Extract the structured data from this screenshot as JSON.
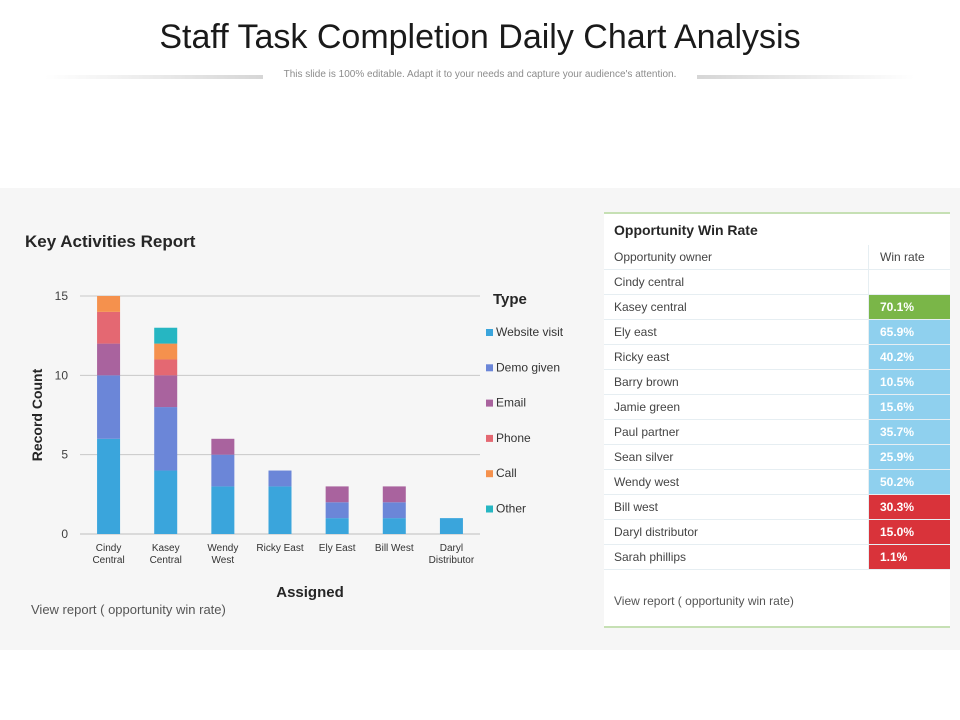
{
  "slide": {
    "title": "Staff Task Completion Daily Chart Analysis",
    "subtitle": "This slide is 100% editable. Adapt it to your needs and capture your audience's attention."
  },
  "report": {
    "title": "Key Activities Report",
    "view_link": "View report ( opportunity win rate)"
  },
  "chart_data": {
    "type": "bar",
    "stacked": true,
    "categories": [
      "Cindy Central",
      "Kasey Central",
      "Wendy West",
      "Ricky East",
      "Ely East",
      "Bill West",
      "Daryl Distributor"
    ],
    "category_labels": [
      [
        "Cindy",
        "Central"
      ],
      [
        "Kasey",
        "Central"
      ],
      [
        "Wendy",
        "West"
      ],
      [
        "Ricky East"
      ],
      [
        "Ely East"
      ],
      [
        "Bill West"
      ],
      [
        "Daryl",
        "Distributor"
      ]
    ],
    "series": [
      {
        "name": "Website visit",
        "color": "#3aa5dc",
        "values": [
          6,
          4,
          3,
          3,
          1,
          1,
          1
        ]
      },
      {
        "name": "Demo given",
        "color": "#6b86d8",
        "values": [
          4,
          4,
          2,
          1,
          1,
          1,
          0
        ]
      },
      {
        "name": "Email",
        "color": "#a9639e",
        "values": [
          2,
          2,
          1,
          0,
          1,
          1,
          0
        ]
      },
      {
        "name": "Phone",
        "color": "#e46872",
        "values": [
          2,
          1,
          0,
          0,
          0,
          0,
          0
        ]
      },
      {
        "name": "Call",
        "color": "#f5914d",
        "values": [
          1,
          1,
          0,
          0,
          0,
          0,
          0
        ]
      },
      {
        "name": "Other",
        "color": "#26b6c2",
        "values": [
          0,
          1,
          0,
          0,
          0,
          0,
          0
        ]
      }
    ],
    "xlabel": "Assigned",
    "ylabel": "Record Count",
    "ylim": [
      0,
      15
    ],
    "yticks": [
      0,
      5,
      10,
      15
    ],
    "legend_title": "Type",
    "legend_position": "right",
    "grid": true
  },
  "win_rate": {
    "title": "Opportunity Win Rate",
    "header": {
      "owner": "Opportunity owner",
      "rate": "Win rate"
    },
    "rows": [
      {
        "owner": "Cindy central",
        "rate": "",
        "color": "#ffffff"
      },
      {
        "owner": "Kasey central",
        "rate": "70.1%",
        "color": "#7ab648"
      },
      {
        "owner": "Ely east",
        "rate": "65.9%",
        "color": "#8fd0ee"
      },
      {
        "owner": "Ricky east",
        "rate": "40.2%",
        "color": "#8fd0ee"
      },
      {
        "owner": "Barry brown",
        "rate": "10.5%",
        "color": "#8fd0ee"
      },
      {
        "owner": "Jamie green",
        "rate": "15.6%",
        "color": "#8fd0ee"
      },
      {
        "owner": "Paul partner",
        "rate": "35.7%",
        "color": "#8fd0ee"
      },
      {
        "owner": "Sean silver",
        "rate": "25.9%",
        "color": "#8fd0ee"
      },
      {
        "owner": "Wendy west",
        "rate": "50.2%",
        "color": "#8fd0ee"
      },
      {
        "owner": "Bill west",
        "rate": "30.3%",
        "color": "#d9333a"
      },
      {
        "owner": "Daryl distributor",
        "rate": "15.0%",
        "color": "#d9333a"
      },
      {
        "owner": "Sarah phillips",
        "rate": "1.1%",
        "color": "#d9333a"
      }
    ],
    "view_link": "View report  ( opportunity win rate)"
  }
}
